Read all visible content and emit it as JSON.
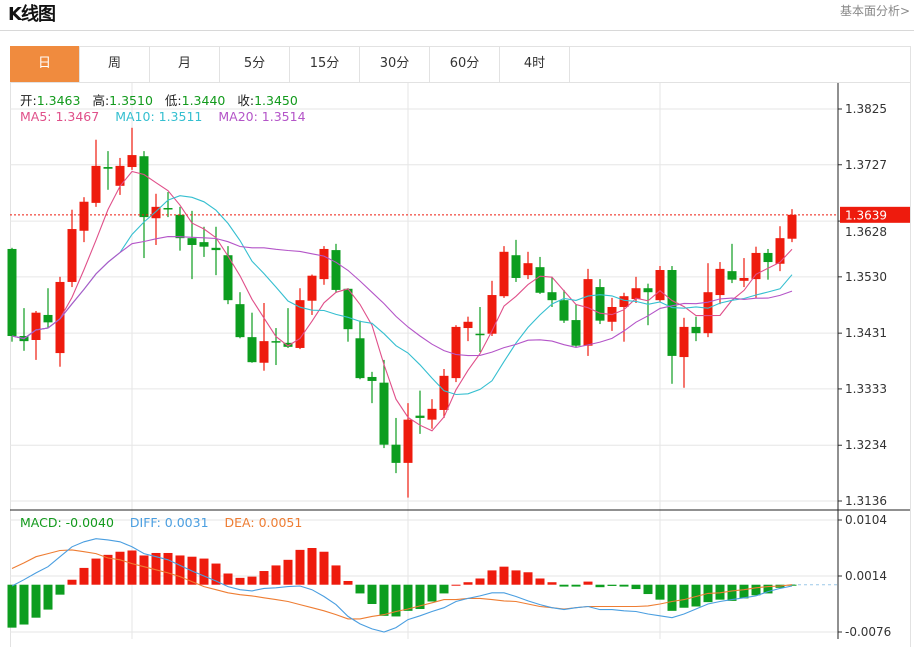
{
  "header": {
    "title": "K线图",
    "more_link": "基本面分析>"
  },
  "tabs": [
    {
      "label": "日",
      "active": true
    },
    {
      "label": "周"
    },
    {
      "label": "月"
    },
    {
      "label": "5分"
    },
    {
      "label": "15分"
    },
    {
      "label": "30分"
    },
    {
      "label": "60分"
    },
    {
      "label": "4时"
    }
  ],
  "ohlc_info": {
    "open_label": "开:",
    "open": "1.3463",
    "high_label": "高:",
    "high": "1.3510",
    "low_label": "低:",
    "low": "1.3440",
    "close_label": "收:",
    "close": "1.3450"
  },
  "ma_info": {
    "ma5": "MA5: 1.3467",
    "ma10": "MA10: 1.3511",
    "ma20": "MA20: 1.3514"
  },
  "macd_info": {
    "macd": "MACD: -0.0040",
    "diff": "DIFF: 0.0031",
    "dea": "DEA: 0.0051"
  },
  "colors": {
    "up": "#ee1b0d",
    "down": "#0c9d1f",
    "ma5": "#e0508a",
    "ma10": "#35bfd0",
    "ma20": "#b455c8",
    "diff": "#4a9ee0",
    "dea": "#ee7d33",
    "active_tab": "#f08b3e"
  },
  "chart_data": {
    "type": "candlestick",
    "title": "",
    "grid": true,
    "last_price": "1.3639",
    "price_axis": {
      "ticks": [
        "1.3825",
        "1.3727",
        "1.3628",
        "1.3530",
        "1.3431",
        "1.3333",
        "1.3234",
        "1.3136"
      ],
      "ylim": [
        1.3136,
        1.3825
      ]
    },
    "macd_axis": {
      "ticks": [
        "0.0104",
        "0.0014",
        "-0.0076"
      ],
      "ylim": [
        -0.0076,
        0.0104
      ]
    },
    "candles_ohlc": [
      [
        1.3579,
        1.3581,
        1.3416,
        1.3426
      ],
      [
        1.3426,
        1.3475,
        1.34,
        1.3417
      ],
      [
        1.3419,
        1.347,
        1.3384,
        1.3467
      ],
      [
        1.3463,
        1.351,
        1.344,
        1.345
      ],
      [
        1.3396,
        1.353,
        1.3372,
        1.3521
      ],
      [
        1.3521,
        1.3648,
        1.3512,
        1.3614
      ],
      [
        1.3611,
        1.367,
        1.3591,
        1.3662
      ],
      [
        1.366,
        1.3771,
        1.3653,
        1.3725
      ],
      [
        1.3723,
        1.3751,
        1.3683,
        1.372
      ],
      [
        1.369,
        1.3739,
        1.3674,
        1.3725
      ],
      [
        1.3723,
        1.3792,
        1.3718,
        1.3744
      ],
      [
        1.3742,
        1.3751,
        1.3563,
        1.3635
      ],
      [
        1.3633,
        1.3676,
        1.3586,
        1.3653
      ],
      [
        1.3651,
        1.3679,
        1.3635,
        1.365
      ],
      [
        1.3639,
        1.3653,
        1.3576,
        1.3598
      ],
      [
        1.3598,
        1.3646,
        1.3526,
        1.3586
      ],
      [
        1.3591,
        1.3618,
        1.3565,
        1.3583
      ],
      [
        1.3581,
        1.3618,
        1.3533,
        1.3577
      ],
      [
        1.3568,
        1.3584,
        1.3482,
        1.3489
      ],
      [
        1.3482,
        1.3503,
        1.3422,
        1.3424
      ],
      [
        1.3424,
        1.3467,
        1.3379,
        1.338
      ],
      [
        1.3379,
        1.3484,
        1.3365,
        1.3417
      ],
      [
        1.3417,
        1.344,
        1.3375,
        1.3415
      ],
      [
        1.3414,
        1.3475,
        1.3405,
        1.3407
      ],
      [
        1.3405,
        1.351,
        1.3403,
        1.3489
      ],
      [
        1.3488,
        1.3534,
        1.3463,
        1.3532
      ],
      [
        1.3526,
        1.3584,
        1.3516,
        1.3579
      ],
      [
        1.3577,
        1.3588,
        1.3502,
        1.3507
      ],
      [
        1.3509,
        1.351,
        1.3416,
        1.3438
      ],
      [
        1.3422,
        1.3453,
        1.335,
        1.3352
      ],
      [
        1.3354,
        1.3363,
        1.3308,
        1.3347
      ],
      [
        1.3344,
        1.3384,
        1.3229,
        1.3235
      ],
      [
        1.3235,
        1.3282,
        1.3185,
        1.3203
      ],
      [
        1.3203,
        1.3308,
        1.3142,
        1.3279
      ],
      [
        1.3286,
        1.333,
        1.3254,
        1.3282
      ],
      [
        1.3279,
        1.3315,
        1.3263,
        1.3298
      ],
      [
        1.3296,
        1.3368,
        1.3282,
        1.3356
      ],
      [
        1.3352,
        1.3445,
        1.3345,
        1.3442
      ],
      [
        1.344,
        1.346,
        1.3417,
        1.3451
      ],
      [
        1.343,
        1.3477,
        1.3398,
        1.3428
      ],
      [
        1.343,
        1.3523,
        1.3426,
        1.3498
      ],
      [
        1.3496,
        1.3584,
        1.3493,
        1.3574
      ],
      [
        1.3568,
        1.3595,
        1.3521,
        1.3528
      ],
      [
        1.3533,
        1.3574,
        1.3526,
        1.3554
      ],
      [
        1.3547,
        1.3565,
        1.35,
        1.3502
      ],
      [
        1.3503,
        1.353,
        1.3477,
        1.3489
      ],
      [
        1.3489,
        1.3507,
        1.3449,
        1.3453
      ],
      [
        1.3454,
        1.3482,
        1.3407,
        1.3409
      ],
      [
        1.3409,
        1.3544,
        1.3391,
        1.3526
      ],
      [
        1.3512,
        1.3526,
        1.3447,
        1.3453
      ],
      [
        1.3451,
        1.3493,
        1.3435,
        1.3477
      ],
      [
        1.3477,
        1.3502,
        1.3416,
        1.3496
      ],
      [
        1.3491,
        1.353,
        1.3484,
        1.351
      ],
      [
        1.351,
        1.3518,
        1.3445,
        1.3503
      ],
      [
        1.3489,
        1.3549,
        1.3486,
        1.3542
      ],
      [
        1.3542,
        1.3549,
        1.3342,
        1.3391
      ],
      [
        1.3389,
        1.3458,
        1.3335,
        1.3442
      ],
      [
        1.3442,
        1.346,
        1.3417,
        1.3431
      ],
      [
        1.3431,
        1.3554,
        1.3424,
        1.3503
      ],
      [
        1.3498,
        1.3556,
        1.3482,
        1.3544
      ],
      [
        1.354,
        1.3588,
        1.3519,
        1.3525
      ],
      [
        1.3523,
        1.3563,
        1.3512,
        1.3528
      ],
      [
        1.3526,
        1.3583,
        1.3493,
        1.3572
      ],
      [
        1.3572,
        1.3579,
        1.3525,
        1.3556
      ],
      [
        1.3553,
        1.3619,
        1.354,
        1.3598
      ],
      [
        1.3597,
        1.3649,
        1.3591,
        1.3639
      ]
    ],
    "macd_histogram": [
      -0.0069,
      -0.0064,
      -0.0053,
      -0.004,
      -0.0016,
      0.0008,
      0.0027,
      0.0042,
      0.0048,
      0.0053,
      0.0055,
      0.0047,
      0.0051,
      0.0051,
      0.0047,
      0.0045,
      0.0042,
      0.0034,
      0.0018,
      0.0011,
      0.0013,
      0.0022,
      0.0031,
      0.004,
      0.0056,
      0.0059,
      0.0053,
      0.0031,
      0.0006,
      -0.0014,
      -0.0031,
      -0.005,
      -0.0051,
      -0.0042,
      -0.0039,
      -0.0027,
      -0.0014,
      0.0,
      0.0004,
      0.001,
      0.0023,
      0.0029,
      0.0023,
      0.002,
      0.001,
      0.0004,
      -0.0003,
      -0.0003,
      0.0005,
      -0.0004,
      -0.0002,
      -0.0003,
      -0.0007,
      -0.0015,
      -0.0024,
      -0.0042,
      -0.0037,
      -0.0035,
      -0.0028,
      -0.0024,
      -0.0026,
      -0.0022,
      -0.0017,
      -0.0014,
      -0.0005,
      -0.0001
    ],
    "diff": [
      -0.0002,
      0.0008,
      0.0019,
      0.0029,
      0.0045,
      0.0061,
      0.0069,
      0.0074,
      0.0072,
      0.0069,
      0.0061,
      0.005,
      0.0045,
      0.004,
      0.0031,
      0.0022,
      0.0014,
      0.0006,
      -0.0003,
      -0.0008,
      -0.001,
      -0.0006,
      -0.0005,
      -0.0003,
      -0.0002,
      -0.0008,
      -0.0019,
      -0.0032,
      -0.0051,
      -0.0063,
      -0.0071,
      -0.0076,
      -0.0069,
      -0.0056,
      -0.005,
      -0.0043,
      -0.0037,
      -0.0027,
      -0.0022,
      -0.0018,
      -0.0013,
      -0.0013,
      -0.0019,
      -0.0026,
      -0.0032,
      -0.0037,
      -0.004,
      -0.0037,
      -0.0035,
      -0.004,
      -0.004,
      -0.0042,
      -0.0043,
      -0.0047,
      -0.005,
      -0.0053,
      -0.0047,
      -0.0039,
      -0.0031,
      -0.0027,
      -0.0024,
      -0.0021,
      -0.0018,
      -0.0011,
      -0.0006,
      -0.0002
    ],
    "dea": [
      0.0026,
      0.0035,
      0.0045,
      0.005,
      0.0055,
      0.0056,
      0.0053,
      0.005,
      0.0043,
      0.004,
      0.0034,
      0.0029,
      0.0024,
      0.0019,
      0.0013,
      0.0005,
      -0.0003,
      -0.0008,
      -0.0013,
      -0.0016,
      -0.0018,
      -0.0021,
      -0.0024,
      -0.0027,
      -0.0032,
      -0.0037,
      -0.0042,
      -0.0048,
      -0.0055,
      -0.0055,
      -0.0051,
      -0.0048,
      -0.0043,
      -0.0039,
      -0.0034,
      -0.0029,
      -0.0024,
      -0.0024,
      -0.0022,
      -0.0022,
      -0.0024,
      -0.0026,
      -0.0027,
      -0.0031,
      -0.0035,
      -0.0037,
      -0.0039,
      -0.0037,
      -0.0035,
      -0.0035,
      -0.0035,
      -0.0035,
      -0.0035,
      -0.0034,
      -0.0031,
      -0.0027,
      -0.0024,
      -0.0019,
      -0.0014,
      -0.0013,
      -0.001,
      -0.0008,
      -0.0005,
      -0.0003,
      -0.0002,
      0.0
    ]
  }
}
